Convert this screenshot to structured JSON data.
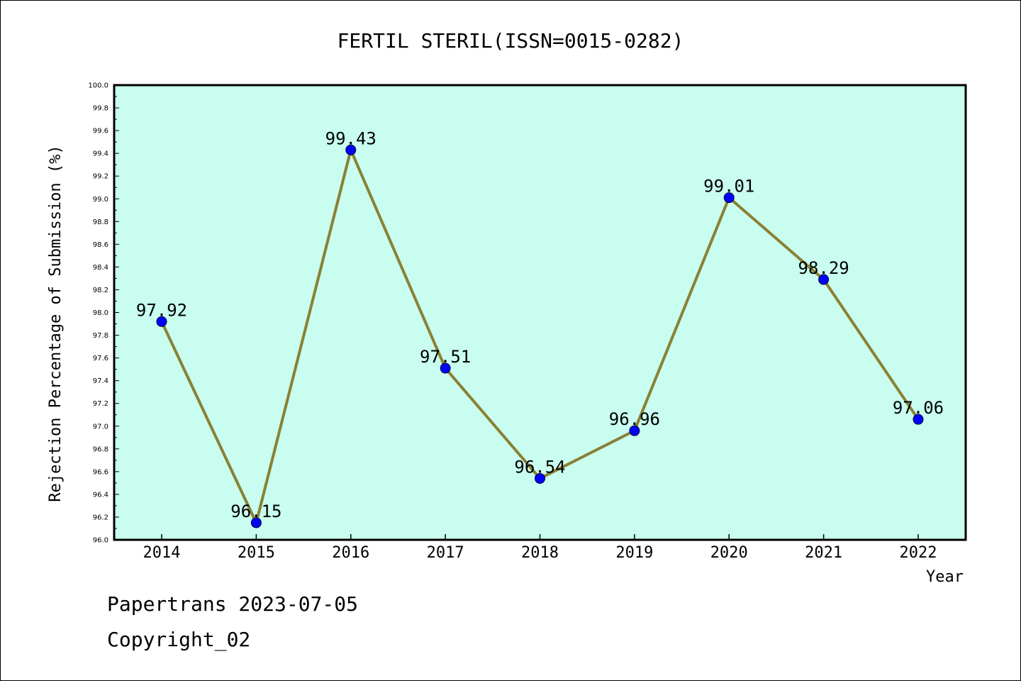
{
  "chart_data": {
    "type": "line",
    "title": "FERTIL STERIL(ISSN=0015-0282)",
    "xlabel": "Year",
    "ylabel": "Rejection Percentage of Submission (%)",
    "categories": [
      "2014",
      "2015",
      "2016",
      "2017",
      "2018",
      "2019",
      "2020",
      "2021",
      "2022"
    ],
    "values": [
      97.92,
      96.15,
      99.43,
      97.51,
      96.54,
      96.96,
      99.01,
      98.29,
      97.06
    ],
    "data_labels": [
      "97.92",
      "96.15",
      "99.43",
      "97.51",
      "96.54",
      "96.96",
      "99.01",
      "98.29",
      "97.06"
    ],
    "ylim": [
      96.0,
      100.0
    ],
    "yticks": [
      "96.0",
      "96.2",
      "96.4",
      "96.6",
      "96.8",
      "97.0",
      "97.2",
      "97.4",
      "97.6",
      "97.8",
      "98.0",
      "98.2",
      "98.4",
      "98.6",
      "98.8",
      "99.0",
      "99.2",
      "99.4",
      "99.6",
      "99.8",
      "100.0"
    ],
    "grid": false,
    "colors": {
      "plot_background": "#c8fdef",
      "line": "#8b8034",
      "marker": "#0000ff",
      "axes": "#000000"
    }
  },
  "footer": {
    "date_line": "Papertrans 2023-07-05",
    "copyright_line": "Copyright_02"
  }
}
